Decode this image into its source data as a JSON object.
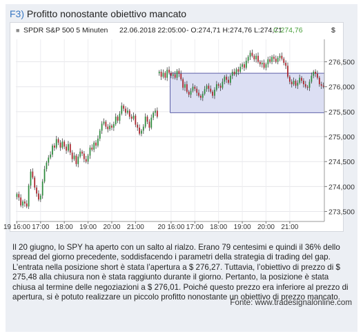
{
  "figure": {
    "number": "F3)",
    "title": "Profitto nonostante obiettivo mancato",
    "caption": "Il 20 giugno, lo SPY ha aperto con un salto al rialzo. Erano 79 centesimi e quindi il 36% dello spread del giorno precedente, soddisfacendo i parametri della strategia di trading del gap. L’entrata nella posizione short è stata l’apertura a $ 276,27. Tuttavia, l’obiettivo di prezzo di $ 275,48 alla chiusura non è stata raggiunto durante il giorno. Pertanto, la posizione è stata chiusa al termine delle negoziazioni a $ 276,01. Poiché questo prezzo era inferiore al prezzo di apertura, si è potuto realizzare un piccolo profitto nonostante un obiettivo di prezzo mancato.",
    "source": "Fonte: www.tradesignalonline.com"
  },
  "colors": {
    "up": "#2e8b3e",
    "down": "#a8242c",
    "zone_fill": "#dcdff3",
    "zone_stroke": "#5b5fa8",
    "accent": "#3a78c2",
    "close_text": "#4aa03c"
  },
  "chart_data": {
    "type": "candlestick",
    "header": {
      "instrument": "SPDR S&P 500 5 Minuten",
      "datetime": "22.06.2018 22:05:00",
      "ohlc": "- O:274,71 H:274,76 L:274,71",
      "close": "C:274,76",
      "unit": "$"
    },
    "ylim": [
      273.3,
      276.95
    ],
    "y_ticks": [
      273.5,
      274.0,
      274.5,
      275.0,
      275.5,
      276.0,
      276.5
    ],
    "y_tick_labels": [
      "273,500",
      "274,000",
      "274,500",
      "275,000",
      "275,500",
      "276,000",
      "276,500"
    ],
    "x_tick_labels": [
      "19 16:00",
      "17:00",
      "18:00",
      "19:00",
      "20:00",
      "21:00",
      "20 16:00",
      "17:00",
      "18:00",
      "19:00",
      "20:00",
      "21:00"
    ],
    "x_tick_index": [
      0,
      12,
      24,
      36,
      48,
      60,
      78,
      90,
      102,
      114,
      126,
      138
    ],
    "target_zone": {
      "start_index": 78,
      "end_index": 155,
      "upper": 276.27,
      "lower": 275.48
    },
    "closes": [
      273.85,
      273.78,
      273.62,
      273.7,
      273.66,
      273.6,
      274.02,
      274.3,
      274.18,
      273.98,
      273.86,
      273.74,
      273.82,
      274.1,
      274.35,
      274.48,
      274.58,
      274.64,
      274.82,
      274.78,
      274.95,
      274.88,
      274.78,
      274.9,
      274.8,
      274.72,
      274.85,
      274.68,
      274.55,
      274.62,
      274.45,
      274.6,
      274.7,
      274.66,
      274.55,
      274.5,
      274.62,
      274.78,
      274.74,
      274.88,
      274.82,
      274.96,
      275.12,
      275.26,
      275.3,
      275.2,
      275.15,
      275.22,
      275.18,
      275.25,
      275.4,
      275.32,
      275.46,
      275.62,
      275.56,
      275.48,
      275.52,
      275.4,
      275.36,
      275.42,
      275.24,
      275.18,
      275.06,
      275.12,
      275.2,
      275.4,
      275.3,
      275.18,
      275.38,
      275.48,
      275.52,
      275.4,
      276.3,
      276.2,
      276.28,
      276.18,
      276.34,
      276.28,
      276.22,
      276.25,
      276.18,
      276.32,
      276.26,
      276.15,
      275.98,
      276.05,
      275.9,
      275.84,
      275.92,
      276.0,
      275.96,
      275.88,
      275.82,
      275.78,
      275.86,
      275.95,
      276.02,
      275.96,
      275.9,
      275.82,
      275.94,
      276.05,
      276.02,
      275.98,
      276.1,
      276.2,
      276.14,
      276.08,
      276.22,
      276.3,
      276.25,
      276.35,
      276.3,
      276.4,
      276.45,
      276.38,
      276.52,
      276.6,
      276.68,
      276.62,
      276.55,
      276.62,
      276.5,
      276.45,
      276.48,
      276.38,
      276.45,
      276.55,
      276.5,
      276.6,
      276.56,
      276.5,
      276.58,
      276.62,
      276.56,
      276.48,
      276.42,
      276.2,
      276.1,
      276.05,
      276.12,
      276.02,
      276.08,
      276.18,
      276.12,
      276.05,
      276.0,
      275.98,
      276.1,
      276.22,
      276.3,
      276.26,
      276.18,
      276.05,
      276.02,
      276.0
    ]
  }
}
